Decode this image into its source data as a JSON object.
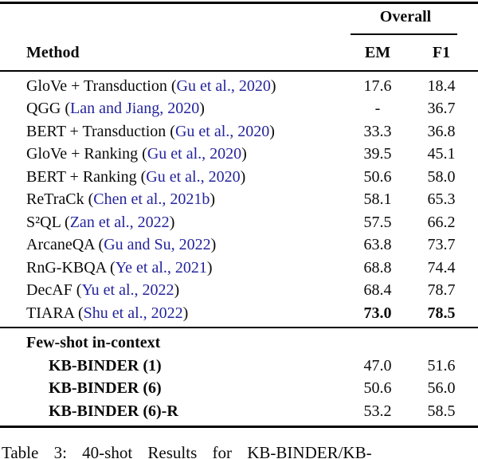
{
  "table": {
    "col_group_header": "Overall",
    "col_method": "Method",
    "col_em": "EM",
    "col_f1": "F1",
    "paren_open": " (",
    "paren_close": ")",
    "rows": [
      {
        "method": "GloVe + Transduction",
        "citation": "Gu et al., 2020",
        "em": "17.6",
        "f1": "18.4"
      },
      {
        "method": "QGG",
        "citation": "Lan and Jiang, 2020",
        "em": "-",
        "f1": "36.7"
      },
      {
        "method": "BERT + Transduction",
        "citation": "Gu et al., 2020",
        "em": "33.3",
        "f1": "36.8"
      },
      {
        "method": "GloVe + Ranking",
        "citation": "Gu et al., 2020",
        "em": "39.5",
        "f1": "45.1"
      },
      {
        "method": "BERT + Ranking",
        "citation": "Gu et al., 2020",
        "em": "50.6",
        "f1": "58.0"
      },
      {
        "method": "ReTraCk",
        "citation": "Chen et al., 2021b",
        "em": "58.1",
        "f1": "65.3"
      },
      {
        "method": "S²QL",
        "citation": "Zan et al., 2022",
        "em": "57.5",
        "f1": "66.2"
      },
      {
        "method": "ArcaneQA",
        "citation": "Gu and Su, 2022",
        "em": "63.8",
        "f1": "73.7"
      },
      {
        "method": "RnG-KBQA",
        "citation": "Ye et al., 2021",
        "em": "68.8",
        "f1": "74.4"
      },
      {
        "method": "DecAF",
        "citation": "Yu et al., 2022",
        "em": "68.4",
        "f1": "78.7"
      },
      {
        "method": "TIARA",
        "citation": "Shu et al., 2022",
        "em": "73.0",
        "f1": "78.5",
        "bold_values": true
      }
    ],
    "section": {
      "label": "Few-shot in-context",
      "rows": [
        {
          "method": "KB-BINDER (1)",
          "em": "47.0",
          "f1": "51.6"
        },
        {
          "method": "KB-BINDER (6)",
          "em": "50.6",
          "f1": "56.0"
        },
        {
          "method": "KB-BINDER (6)-R",
          "em": "53.2",
          "f1": "58.5"
        }
      ]
    }
  },
  "caption": "Table 3: 40-shot Results for KB-BINDER/KB-",
  "colors": {
    "citation_link": "#24249c",
    "text": "#0a0a0a",
    "rule": "#000000"
  }
}
